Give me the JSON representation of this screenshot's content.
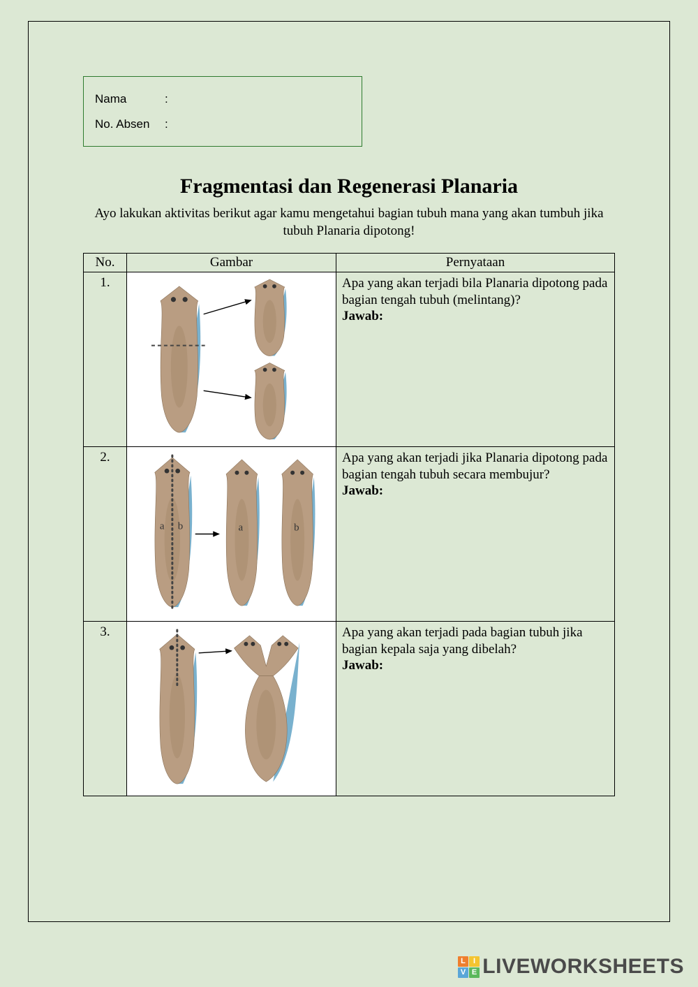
{
  "page": {
    "background_color": "#dce8d4",
    "frame_border_color": "#000000"
  },
  "name_box": {
    "border_color": "#2e7b2e",
    "rows": [
      {
        "label": "Nama",
        "sep": ":"
      },
      {
        "label": "No. Absen",
        "sep": ":"
      }
    ]
  },
  "title": "Fragmentasi dan Regenerasi Planaria",
  "instruction": "Ayo lakukan aktivitas berikut agar kamu mengetahui bagian tubuh mana yang akan tumbuh jika tubuh Planaria dipotong!",
  "table": {
    "headers": {
      "no": "No.",
      "img": "Gambar",
      "stmt": "Pernyataan"
    },
    "jawab_label": "Jawab:",
    "rows": [
      {
        "no": "1.",
        "question": "Apa yang akan terjadi bila Planaria dipotong pada bagian tengah tubuh (melintang)?",
        "diagram": {
          "type": "planaria-transverse",
          "planaria_fill": "#b99d82",
          "planaria_stroke": "#6aa9c9",
          "cut_color": "#444444",
          "arrow_color": "#000000",
          "eye_color": "#333333"
        }
      },
      {
        "no": "2.",
        "question": "Apa yang akan terjadi jika Planaria dipotong pada bagian tengah tubuh secara membujur?",
        "diagram": {
          "type": "planaria-longitudinal",
          "planaria_fill": "#b99d82",
          "planaria_stroke": "#6aa9c9",
          "cut_color": "#444444",
          "arrow_color": "#000000",
          "eye_color": "#333333",
          "labels": [
            "a",
            "b"
          ]
        }
      },
      {
        "no": "3.",
        "question": "Apa yang akan terjadi pada bagian tubuh jika bagian kepala saja yang dibelah?",
        "diagram": {
          "type": "planaria-head-split",
          "planaria_fill": "#b99d82",
          "planaria_stroke": "#6aa9c9",
          "cut_color": "#444444",
          "arrow_color": "#000000",
          "eye_color": "#333333"
        }
      }
    ]
  },
  "logo": {
    "text": "LIVEWORKSHEETS",
    "text_color": "#4a4a4a",
    "tiles": [
      {
        "char": "L",
        "bg": "#ef7f2e"
      },
      {
        "char": "I",
        "bg": "#f4c430"
      },
      {
        "char": "V",
        "bg": "#5aa6d8"
      },
      {
        "char": "E",
        "bg": "#5bb85b"
      }
    ]
  }
}
